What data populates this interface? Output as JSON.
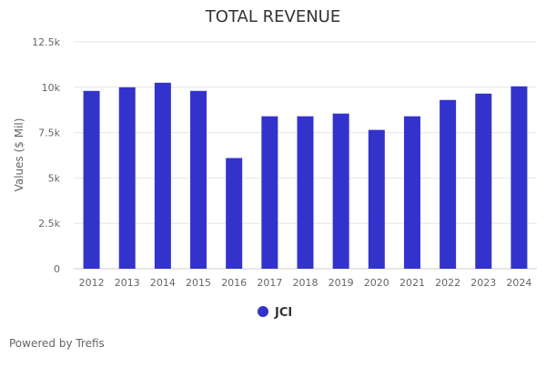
{
  "colors": {
    "bar": "#3333CC",
    "grid": "#e6e6e6",
    "axis_text": "#666666",
    "title_text": "#333333"
  },
  "chart_data": {
    "type": "bar",
    "title": "TOTAL REVENUE",
    "xlabel": "",
    "ylabel": "Values ($ Mil)",
    "categories": [
      "2012",
      "2013",
      "2014",
      "2015",
      "2016",
      "2017",
      "2018",
      "2019",
      "2020",
      "2021",
      "2022",
      "2023",
      "2024"
    ],
    "series": [
      {
        "name": "JCI",
        "color": "#3333CC",
        "values": [
          9800,
          10000,
          10250,
          9800,
          6100,
          8400,
          8400,
          8550,
          7650,
          8400,
          9300,
          9650,
          10050
        ]
      }
    ],
    "ylim": [
      0,
      12500
    ],
    "yticks": [
      0,
      2500,
      5000,
      7500,
      10000,
      12500
    ],
    "ytick_labels": [
      "0",
      "2.5k",
      "5k",
      "7.5k",
      "10k",
      "12.5k"
    ],
    "grid": true,
    "legend": "bottom-center"
  },
  "footer": {
    "powered_by": "Powered by Trefis"
  }
}
